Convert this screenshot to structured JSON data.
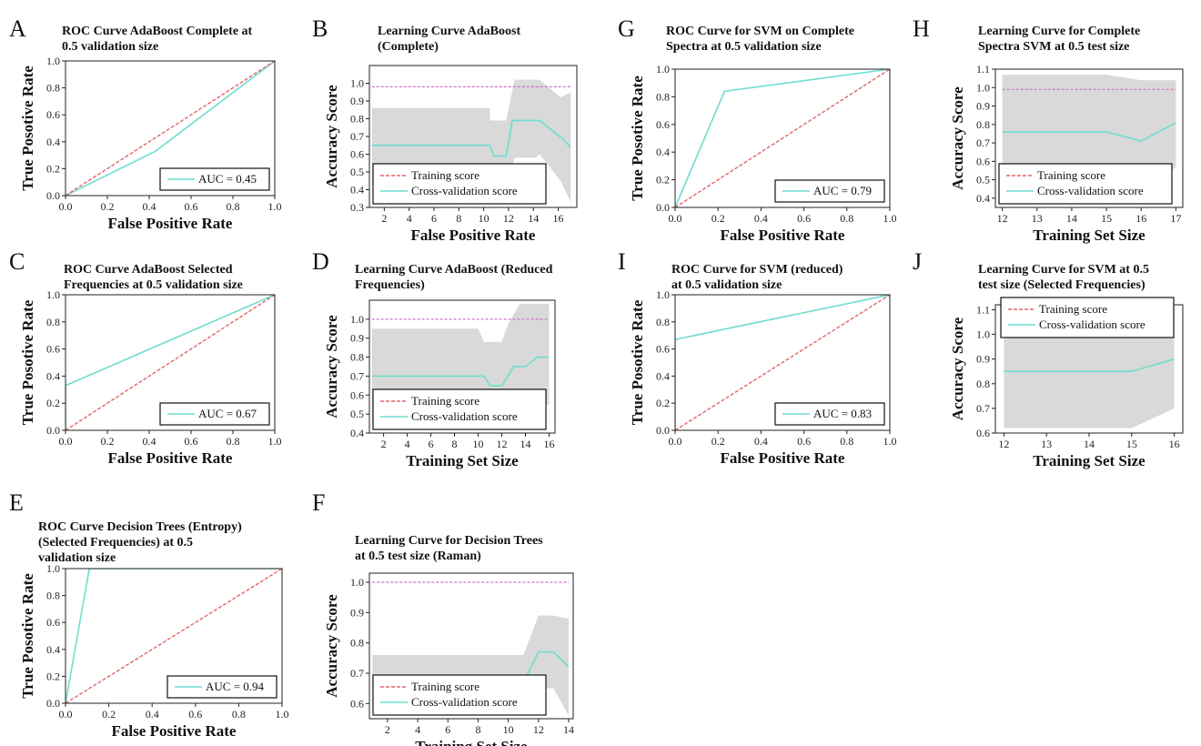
{
  "figure": {
    "background": "#ffffff"
  },
  "colors": {
    "training": "#e06666",
    "cv": "#6fdcd0",
    "band": "#d9d9d9",
    "train_line": "#d070d0"
  },
  "chart_data": [
    {
      "id": "A",
      "letter": "A",
      "type": "line",
      "title_lines": [
        "ROC Curve AdaBoost Complete at",
        "0.5 validation size"
      ],
      "xlabel": "False Positive Rate",
      "ylabel": "True Posotive Rate",
      "xlim": [
        0,
        1
      ],
      "ylim": [
        0,
        1
      ],
      "xticks": [
        0,
        0.2,
        0.4,
        0.6,
        0.8,
        1.0
      ],
      "xtick_labels": [
        "0.0",
        "0.2",
        "0.4",
        "0.6",
        "0.8",
        "1.0"
      ],
      "yticks": [
        0,
        0.2,
        0.4,
        0.6,
        0.8,
        1.0
      ],
      "ytick_labels": [
        "0.0",
        "0.2",
        "0.4",
        "0.6",
        "0.8",
        "1.0"
      ],
      "series": [
        {
          "role": "roc",
          "x": [
            0,
            0.43,
            1
          ],
          "y": [
            0,
            0.33,
            1
          ]
        },
        {
          "role": "diag",
          "x": [
            0,
            1
          ],
          "y": [
            0,
            1
          ]
        }
      ],
      "legend": {
        "position": "bottom-right",
        "entries": [
          {
            "label": "AUC = 0.45",
            "style": "cv"
          }
        ]
      }
    },
    {
      "id": "B",
      "letter": "B",
      "type": "line",
      "title_lines": [
        "Learning Curve AdaBoost",
        "(Complete)"
      ],
      "xlabel": "False Positive Rate",
      "ylabel": "Accuracy Score",
      "xlim": [
        0.8,
        17.5
      ],
      "ylim": [
        0.3,
        1.1
      ],
      "xticks": [
        2,
        4,
        6,
        8,
        10,
        12,
        14,
        16
      ],
      "xtick_labels": [
        "2",
        "4",
        "6",
        "8",
        "10",
        "12",
        "14",
        "16"
      ],
      "yticks": [
        0.3,
        0.4,
        0.5,
        0.6,
        0.7,
        0.8,
        0.9,
        1.0
      ],
      "ytick_labels": [
        "0.3",
        "0.4",
        "0.5",
        "0.6",
        "0.7",
        "0.8",
        "0.9",
        "1.0"
      ],
      "series": [
        {
          "role": "band",
          "x": [
            1,
            10.5,
            10.5,
            11.8,
            12.5,
            14.2,
            14.5,
            16.2,
            17
          ],
          "upper": [
            0.86,
            0.86,
            0.79,
            0.79,
            1.02,
            1.02,
            1.02,
            0.92,
            0.95
          ],
          "lower": [
            0.45,
            0.45,
            0.39,
            0.39,
            0.58,
            0.58,
            0.6,
            0.45,
            0.33
          ]
        },
        {
          "role": "train",
          "x": [
            1,
            17
          ],
          "y": [
            0.98,
            0.98
          ]
        },
        {
          "role": "cv",
          "x": [
            1,
            10.5,
            10.8,
            11.8,
            12.3,
            12.5,
            14.5,
            16.3,
            17
          ],
          "y": [
            0.65,
            0.65,
            0.59,
            0.59,
            0.79,
            0.79,
            0.79,
            0.69,
            0.64
          ]
        }
      ],
      "legend": {
        "position": "bottom-left",
        "entries": [
          {
            "label": "Training score",
            "style": "training"
          },
          {
            "label": "Cross-validation score",
            "style": "cv"
          }
        ]
      }
    },
    {
      "id": "C",
      "letter": "C",
      "type": "line",
      "title_lines": [
        "ROC Curve AdaBoost Selected",
        "Frequencies at 0.5 validation size"
      ],
      "xlabel": "False Positive Rate",
      "ylabel": "True Posotive Rate",
      "xlim": [
        0,
        1
      ],
      "ylim": [
        0,
        1
      ],
      "xticks": [
        0,
        0.2,
        0.4,
        0.6,
        0.8,
        1.0
      ],
      "xtick_labels": [
        "0.0",
        "0.2",
        "0.4",
        "0.6",
        "0.8",
        "1.0"
      ],
      "yticks": [
        0,
        0.2,
        0.4,
        0.6,
        0.8,
        1.0
      ],
      "ytick_labels": [
        "0.0",
        "0.2",
        "0.4",
        "0.6",
        "0.8",
        "1.0"
      ],
      "series": [
        {
          "role": "roc",
          "x": [
            0,
            0,
            1
          ],
          "y": [
            0,
            0.33,
            1
          ]
        },
        {
          "role": "diag",
          "x": [
            0,
            1
          ],
          "y": [
            0,
            1
          ]
        }
      ],
      "legend": {
        "position": "bottom-right",
        "entries": [
          {
            "label": "AUC = 0.67",
            "style": "cv"
          }
        ]
      }
    },
    {
      "id": "D",
      "letter": "D",
      "type": "line",
      "title_lines": [
        "Learning Curve AdaBoost (Reduced",
        "Frequencies)"
      ],
      "xlabel": "Training Set Size",
      "ylabel": "Accuracy Score",
      "xlim": [
        0.8,
        16.5
      ],
      "ylim": [
        0.4,
        1.1
      ],
      "xticks": [
        2,
        4,
        6,
        8,
        10,
        12,
        14,
        16
      ],
      "xtick_labels": [
        "2",
        "4",
        "6",
        "8",
        "10",
        "12",
        "14",
        "16"
      ],
      "yticks": [
        0.4,
        0.5,
        0.6,
        0.7,
        0.8,
        0.9,
        1.0
      ],
      "ytick_labels": [
        "0.4",
        "0.5",
        "0.6",
        "0.7",
        "0.8",
        "0.9",
        "1.0"
      ],
      "series": [
        {
          "role": "band",
          "x": [
            1,
            10,
            10.5,
            12,
            12.5,
            13.5,
            14.5,
            15.5,
            16
          ],
          "upper": [
            0.95,
            0.95,
            0.88,
            0.88,
            0.97,
            1.08,
            1.08,
            1.08,
            1.08
          ],
          "lower": [
            0.45,
            0.45,
            0.42,
            0.42,
            0.45,
            0.45,
            0.5,
            0.55,
            0.55
          ]
        },
        {
          "role": "train",
          "x": [
            1,
            16
          ],
          "y": [
            1.0,
            1.0
          ]
        },
        {
          "role": "cv",
          "x": [
            1,
            10.5,
            11,
            12,
            12.5,
            13,
            14,
            15,
            16
          ],
          "y": [
            0.7,
            0.7,
            0.65,
            0.65,
            0.7,
            0.75,
            0.75,
            0.8,
            0.8
          ]
        }
      ],
      "legend": {
        "position": "bottom-left",
        "entries": [
          {
            "label": "Training score",
            "style": "training"
          },
          {
            "label": "Cross-validation score",
            "style": "cv"
          }
        ]
      }
    },
    {
      "id": "E",
      "letter": "E",
      "type": "line",
      "title_lines": [
        "ROC Curve Decision Trees (Entropy)",
        "(Selected Frequencies) at 0.5",
        "validation size"
      ],
      "xlabel": "False Positive Rate",
      "ylabel": "True Posotive Rate",
      "xlim": [
        0,
        1
      ],
      "ylim": [
        0,
        1
      ],
      "xticks": [
        0,
        0.2,
        0.4,
        0.6,
        0.8,
        1.0
      ],
      "xtick_labels": [
        "0.0",
        "0.2",
        "0.4",
        "0.6",
        "0.8",
        "1.0"
      ],
      "yticks": [
        0,
        0.2,
        0.4,
        0.6,
        0.8,
        1.0
      ],
      "ytick_labels": [
        "0.0",
        "0.2",
        "0.4",
        "0.6",
        "0.8",
        "1.0"
      ],
      "series": [
        {
          "role": "roc",
          "x": [
            0,
            0.11,
            1
          ],
          "y": [
            0,
            1,
            1
          ]
        },
        {
          "role": "diag",
          "x": [
            0,
            1
          ],
          "y": [
            0,
            1
          ]
        }
      ],
      "legend": {
        "position": "bottom-right",
        "entries": [
          {
            "label": "AUC = 0.94",
            "style": "cv"
          }
        ]
      }
    },
    {
      "id": "F",
      "letter": "F",
      "type": "line",
      "title_lines": [
        "Learning Curve for Decision Trees",
        "at 0.5 test size (Raman)"
      ],
      "xlabel": "Training Set Size",
      "ylabel": "Accuracy Score",
      "xlim": [
        0.8,
        14.3
      ],
      "ylim": [
        0.55,
        1.03
      ],
      "xticks": [
        2,
        4,
        6,
        8,
        10,
        12,
        14
      ],
      "xtick_labels": [
        "2",
        "4",
        "6",
        "8",
        "10",
        "12",
        "14"
      ],
      "yticks": [
        0.6,
        0.7,
        0.8,
        0.9,
        1.0
      ],
      "ytick_labels": [
        "0.6",
        "0.7",
        "0.8",
        "0.9",
        "1.0"
      ],
      "series": [
        {
          "role": "band",
          "x": [
            1,
            11,
            12,
            13,
            14
          ],
          "upper": [
            0.76,
            0.76,
            0.89,
            0.89,
            0.88
          ],
          "lower": [
            0.58,
            0.58,
            0.65,
            0.65,
            0.56
          ]
        },
        {
          "role": "train",
          "x": [
            1,
            14
          ],
          "y": [
            1.0,
            1.0
          ]
        },
        {
          "role": "cv",
          "x": [
            1,
            11,
            12,
            13,
            14
          ],
          "y": [
            0.67,
            0.67,
            0.77,
            0.77,
            0.72
          ]
        }
      ],
      "legend": {
        "position": "bottom-left",
        "entries": [
          {
            "label": "Training score",
            "style": "training"
          },
          {
            "label": "Cross-validation score",
            "style": "cv"
          }
        ]
      }
    },
    {
      "id": "G",
      "letter": "G",
      "type": "line",
      "title_lines": [
        "ROC Curve for SVM on Complete",
        "Spectra at 0.5 validation size"
      ],
      "xlabel": "False Positive Rate",
      "ylabel": "True Posotive Rate",
      "xlim": [
        0,
        1
      ],
      "ylim": [
        0,
        1
      ],
      "xticks": [
        0,
        0.2,
        0.4,
        0.6,
        0.8,
        1.0
      ],
      "xtick_labels": [
        "0.0",
        "0.2",
        "0.4",
        "0.6",
        "0.8",
        "1.0"
      ],
      "yticks": [
        0,
        0.2,
        0.4,
        0.6,
        0.8,
        1.0
      ],
      "ytick_labels": [
        "0.0",
        "0.2",
        "0.4",
        "0.6",
        "0.8",
        "1.0"
      ],
      "series": [
        {
          "role": "roc",
          "x": [
            0,
            0.23,
            1
          ],
          "y": [
            0,
            0.84,
            1
          ]
        },
        {
          "role": "diag",
          "x": [
            0,
            1
          ],
          "y": [
            0,
            1
          ]
        }
      ],
      "legend": {
        "position": "bottom-right",
        "entries": [
          {
            "label": "AUC = 0.79",
            "style": "cv"
          }
        ]
      }
    },
    {
      "id": "H",
      "letter": "H",
      "type": "line",
      "title_lines": [
        "Learning Curve for Complete",
        "Spectra SVM at 0.5 test size"
      ],
      "xlabel": "Training Set Size",
      "ylabel": "Accuracy Score",
      "xlim": [
        11.8,
        17.2
      ],
      "ylim": [
        0.35,
        1.1
      ],
      "xticks": [
        12,
        13,
        14,
        15,
        16,
        17
      ],
      "xtick_labels": [
        "12",
        "13",
        "14",
        "15",
        "16",
        "17"
      ],
      "yticks": [
        0.4,
        0.5,
        0.6,
        0.7,
        0.8,
        0.9,
        1.0,
        1.1
      ],
      "ytick_labels": [
        "0.4",
        "0.5",
        "0.6",
        "0.7",
        "0.8",
        "0.9",
        "1.0",
        "1.1"
      ],
      "series": [
        {
          "role": "band",
          "x": [
            12,
            15,
            16,
            17
          ],
          "upper": [
            1.07,
            1.07,
            1.04,
            1.04
          ],
          "lower": [
            0.45,
            0.45,
            0.38,
            0.57
          ]
        },
        {
          "role": "train",
          "x": [
            12,
            17
          ],
          "y": [
            0.99,
            0.99
          ]
        },
        {
          "role": "cv",
          "x": [
            12,
            15,
            16,
            17
          ],
          "y": [
            0.76,
            0.76,
            0.71,
            0.81
          ]
        }
      ],
      "legend": {
        "position": "bottom-left",
        "entries": [
          {
            "label": "Training score",
            "style": "training"
          },
          {
            "label": "Cross-validation score",
            "style": "cv"
          }
        ]
      }
    },
    {
      "id": "I",
      "letter": "I",
      "type": "line",
      "title_lines": [
        "ROC Curve for SVM (reduced)",
        "at 0.5 validation size"
      ],
      "xlabel": "False Positive Rate",
      "ylabel": "True Posotive Rate",
      "xlim": [
        0,
        1
      ],
      "ylim": [
        0,
        1
      ],
      "xticks": [
        0,
        0.2,
        0.4,
        0.6,
        0.8,
        1.0
      ],
      "xtick_labels": [
        "0.0",
        "0.2",
        "0.4",
        "0.6",
        "0.8",
        "1.0"
      ],
      "yticks": [
        0,
        0.2,
        0.4,
        0.6,
        0.8,
        1.0
      ],
      "ytick_labels": [
        "0.0",
        "0.2",
        "0.4",
        "0.6",
        "0.8",
        "1.0"
      ],
      "series": [
        {
          "role": "roc",
          "x": [
            0,
            0,
            1
          ],
          "y": [
            0,
            0.67,
            1
          ]
        },
        {
          "role": "diag",
          "x": [
            0,
            1
          ],
          "y": [
            0,
            1
          ]
        }
      ],
      "legend": {
        "position": "bottom-right",
        "entries": [
          {
            "label": "AUC = 0.83",
            "style": "cv"
          }
        ]
      }
    },
    {
      "id": "J",
      "letter": "J",
      "type": "line",
      "title_lines": [
        "Learning Curve for SVM at 0.5",
        "test size (Selected Frequencies)"
      ],
      "xlabel": "Training Set Size",
      "ylabel": "Accuracy Score",
      "xlim": [
        11.8,
        16.2
      ],
      "ylim": [
        0.6,
        1.12
      ],
      "xticks": [
        12,
        13,
        14,
        15,
        16
      ],
      "xtick_labels": [
        "12",
        "13",
        "14",
        "15",
        "16"
      ],
      "yticks": [
        0.6,
        0.7,
        0.8,
        0.9,
        1.0,
        1.1
      ],
      "ytick_labels": [
        "0.6",
        "0.7",
        "0.8",
        "0.9",
        "1.0",
        "1.1"
      ],
      "series": [
        {
          "role": "band",
          "x": [
            12,
            15,
            16
          ],
          "upper": [
            1.08,
            1.08,
            1.1
          ],
          "lower": [
            0.62,
            0.62,
            0.7
          ]
        },
        {
          "role": "train",
          "x": [
            12,
            16
          ],
          "y": [
            1.0,
            1.0
          ]
        },
        {
          "role": "cv",
          "x": [
            12,
            15,
            16
          ],
          "y": [
            0.85,
            0.85,
            0.9
          ]
        }
      ],
      "legend": {
        "position": "top-left",
        "entries": [
          {
            "label": "Training score",
            "style": "training"
          },
          {
            "label": "Cross-validation score",
            "style": "cv"
          }
        ]
      }
    }
  ]
}
